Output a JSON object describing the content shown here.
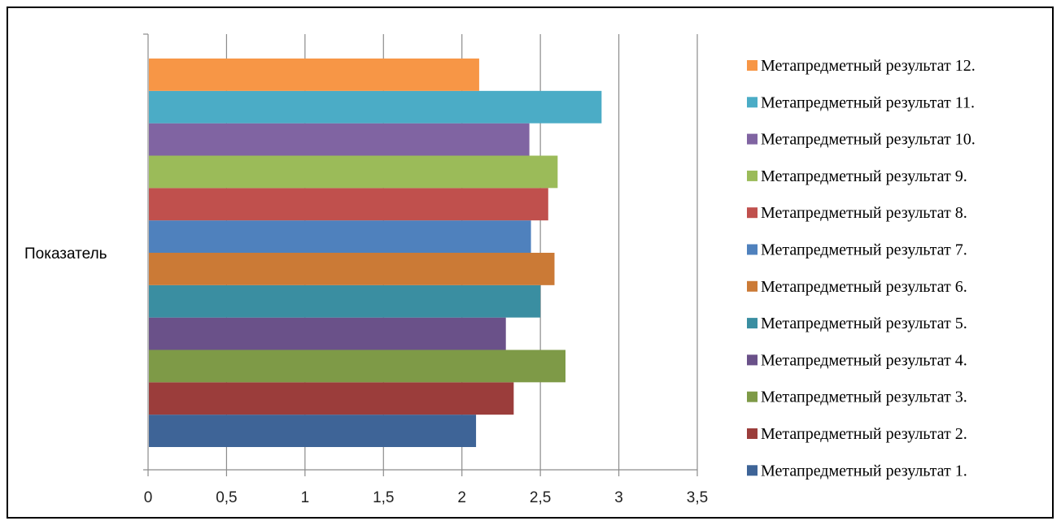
{
  "chart_data": {
    "type": "bar",
    "orientation": "horizontal",
    "category_label": "Показатель",
    "xlim": [
      0,
      3.5
    ],
    "xticks": [
      "0",
      "0,5",
      "1",
      "1,5",
      "2",
      "2,5",
      "3",
      "3,5"
    ],
    "xtick_values": [
      0,
      0.5,
      1,
      1.5,
      2,
      2.5,
      3,
      3.5
    ],
    "grid": "vertical",
    "legend_position": "right",
    "series": [
      {
        "name": "Метапредметный результат 1.",
        "value": 2.09,
        "color": "#3E6497"
      },
      {
        "name": "Метапредметный результат 2.",
        "value": 2.33,
        "color": "#9B3D3B"
      },
      {
        "name": "Метапредметный результат 3.",
        "value": 2.66,
        "color": "#7E9A47"
      },
      {
        "name": "Метапредметный результат 4.",
        "value": 2.28,
        "color": "#6A5189"
      },
      {
        "name": "Метапредметный результат 5.",
        "value": 2.5,
        "color": "#3A8EA1"
      },
      {
        "name": "Метапредметный результат 6.",
        "value": 2.59,
        "color": "#CB7A36"
      },
      {
        "name": "Метапредметный результат 7.",
        "value": 2.44,
        "color": "#4F81BD"
      },
      {
        "name": "Метапредметный результат 8.",
        "value": 2.55,
        "color": "#C0504D"
      },
      {
        "name": "Метапредметный результат 9.",
        "value": 2.61,
        "color": "#9BBB59"
      },
      {
        "name": "Метапредметный результат 10.",
        "value": 2.43,
        "color": "#8064A2"
      },
      {
        "name": "Метапредметный результат 11.",
        "value": 2.89,
        "color": "#4BACC6"
      },
      {
        "name": "Метапредметный результат 12.",
        "value": 2.11,
        "color": "#F79646"
      }
    ]
  }
}
